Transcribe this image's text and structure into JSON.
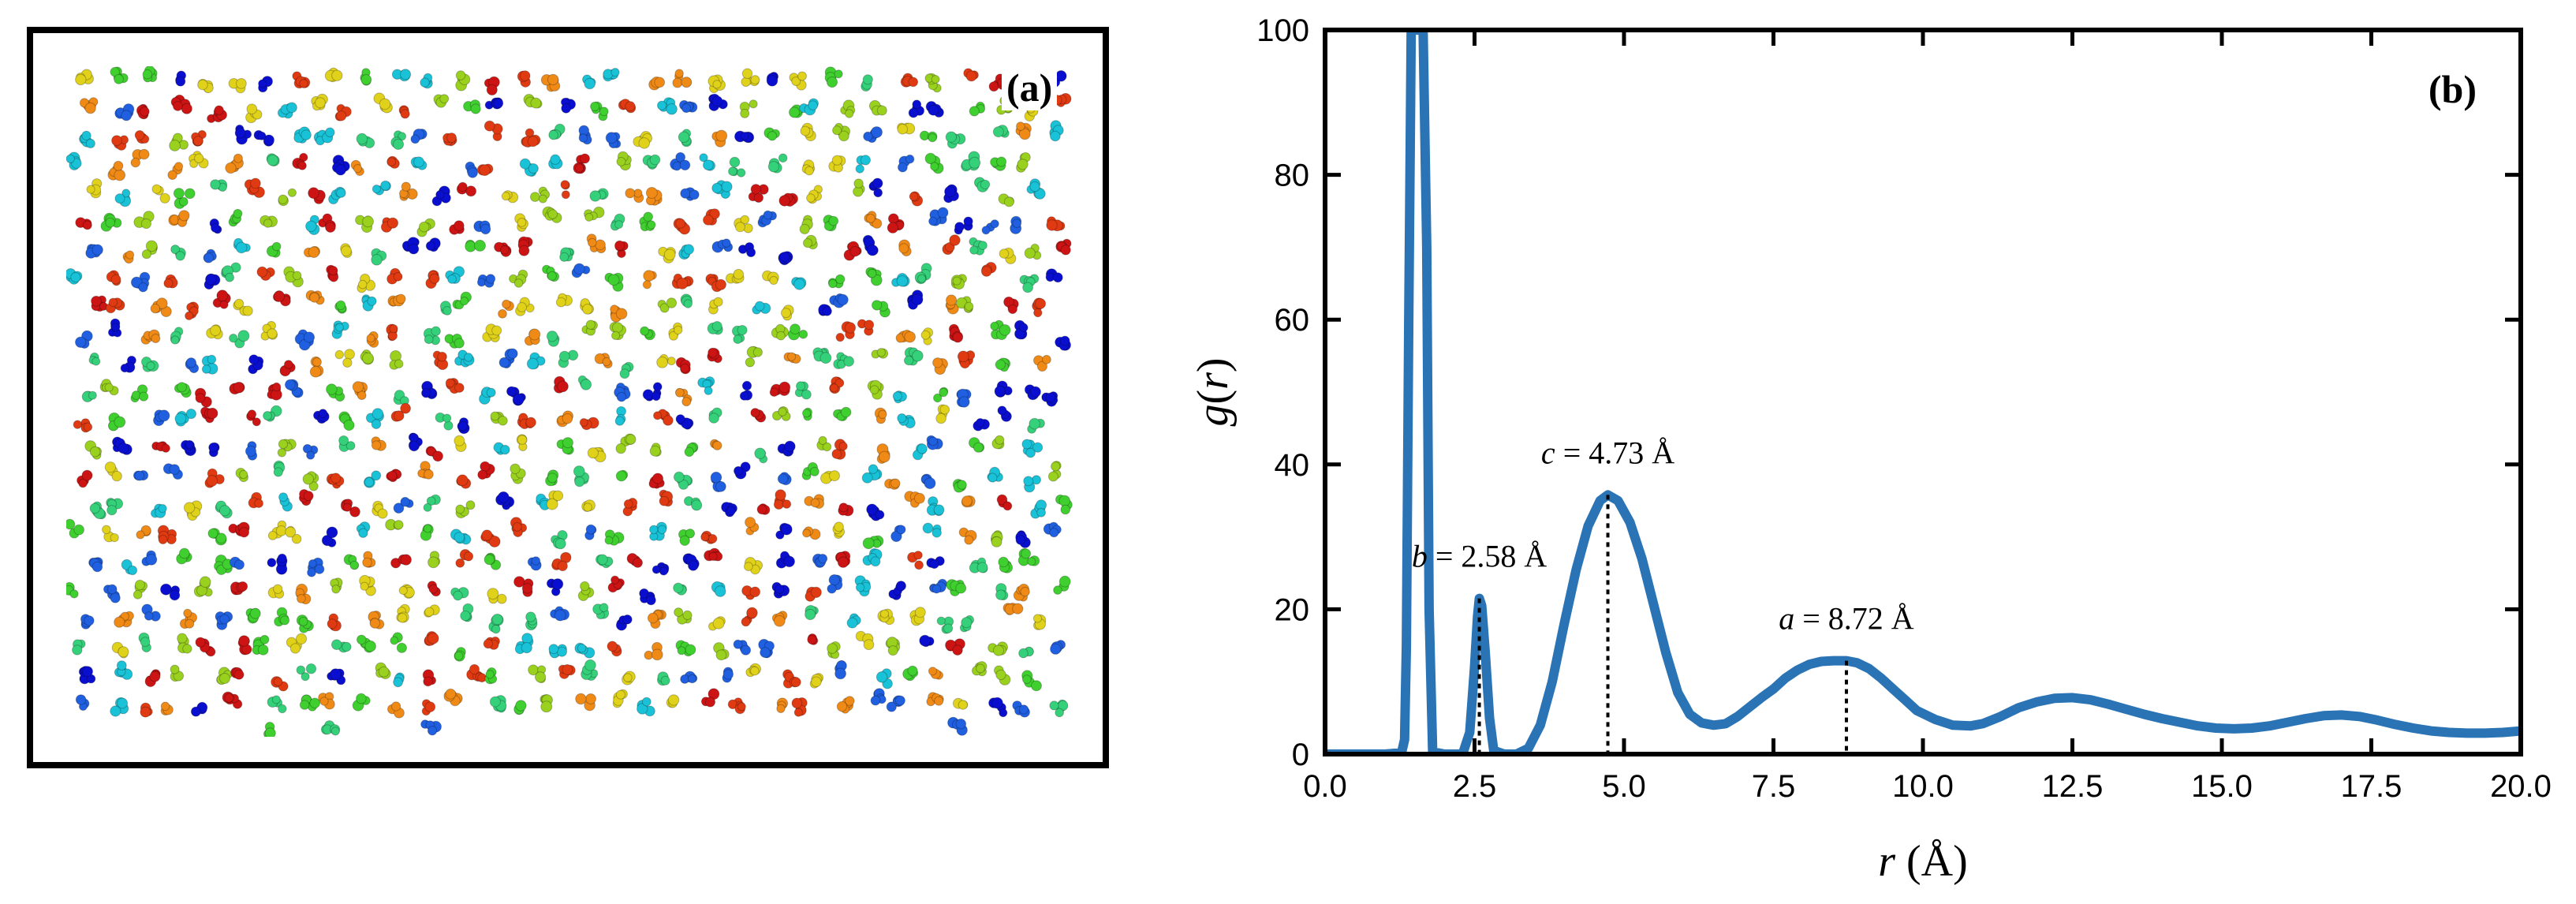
{
  "panel_a": {
    "label": "(a)",
    "image_alt": "Molecular dynamics snapshot of colored atom clusters",
    "palette": [
      "#0a0fcf",
      "#1f5fe0",
      "#19c2d6",
      "#35d17a",
      "#3fcf2f",
      "#9ad11e",
      "#e0d21b",
      "#f08a16",
      "#e03a12",
      "#cc1414"
    ]
  },
  "chart_data": {
    "type": "line",
    "panel_label": "(b)",
    "xlabel_var": "r",
    "xlabel_unit": "(Å)",
    "ylabel_prefix": "g(",
    "ylabel_var": "r",
    "ylabel_suffix": ")",
    "xlim": [
      0,
      20
    ],
    "ylim": [
      0,
      100
    ],
    "xticks": [
      0,
      2.5,
      5,
      7.5,
      10,
      12.5,
      15,
      17.5,
      20
    ],
    "xtick_labels": [
      "0.0",
      "2.5",
      "5.0",
      "7.5",
      "10.0",
      "12.5",
      "15.0",
      "17.5",
      "20.0"
    ],
    "yticks": [
      0,
      20,
      40,
      60,
      80,
      100
    ],
    "ytick_labels": [
      "0",
      "20",
      "40",
      "60",
      "80",
      "100"
    ],
    "line_color": "#2a73b5",
    "series": [
      {
        "name": "g(r)",
        "x": [
          0.0,
          1.0,
          1.28,
          1.33,
          1.36,
          1.4,
          1.44,
          1.5,
          1.56,
          1.6,
          1.64,
          1.7,
          1.74,
          1.8,
          2.0,
          2.3,
          2.42,
          2.5,
          2.55,
          2.58,
          2.62,
          2.68,
          2.75,
          2.82,
          3.0,
          3.2,
          3.4,
          3.6,
          3.8,
          4.0,
          4.2,
          4.4,
          4.6,
          4.73,
          4.9,
          5.1,
          5.3,
          5.5,
          5.7,
          5.9,
          6.1,
          6.3,
          6.5,
          6.7,
          6.9,
          7.1,
          7.3,
          7.5,
          7.7,
          7.9,
          8.1,
          8.3,
          8.5,
          8.72,
          8.9,
          9.1,
          9.3,
          9.5,
          9.7,
          9.9,
          10.2,
          10.5,
          10.8,
          11.0,
          11.3,
          11.6,
          11.9,
          12.2,
          12.5,
          12.8,
          13.1,
          13.4,
          13.7,
          14.0,
          14.3,
          14.6,
          14.9,
          15.2,
          15.5,
          15.8,
          16.1,
          16.4,
          16.7,
          17.0,
          17.3,
          17.6,
          17.9,
          18.2,
          18.5,
          18.8,
          19.1,
          19.4,
          19.7,
          20.0
        ],
        "y": [
          0.0,
          0.0,
          0.2,
          2.0,
          15.0,
          60.0,
          100.0,
          100.0,
          100.0,
          100.0,
          100.0,
          70.0,
          20.0,
          0.3,
          0.0,
          0.0,
          3.0,
          12.0,
          19.0,
          21.5,
          20.5,
          14.0,
          5.0,
          0.5,
          0.0,
          0.0,
          0.8,
          4.0,
          10.0,
          18.0,
          25.5,
          31.5,
          35.0,
          35.8,
          35.0,
          32.0,
          27.0,
          20.5,
          14.0,
          8.5,
          5.5,
          4.3,
          4.0,
          4.2,
          5.2,
          6.5,
          7.8,
          9.0,
          10.5,
          11.6,
          12.4,
          12.8,
          12.9,
          12.9,
          12.6,
          11.8,
          10.5,
          9.0,
          7.5,
          6.0,
          4.8,
          4.0,
          3.9,
          4.2,
          5.2,
          6.4,
          7.2,
          7.7,
          7.8,
          7.5,
          6.9,
          6.2,
          5.5,
          4.9,
          4.4,
          3.9,
          3.6,
          3.5,
          3.6,
          3.9,
          4.4,
          4.9,
          5.3,
          5.4,
          5.2,
          4.7,
          4.1,
          3.6,
          3.2,
          3.0,
          2.9,
          2.9,
          3.0,
          3.2
        ]
      }
    ],
    "annotations": [
      {
        "var": "b",
        "text": " = 2.58 Å",
        "x": 2.58,
        "y": 21.5
      },
      {
        "var": "c",
        "text": " = 4.73 Å",
        "x": 4.73,
        "y": 35.8
      },
      {
        "var": "a",
        "text": " = 8.72 Å",
        "x": 8.72,
        "y": 12.9
      }
    ]
  }
}
